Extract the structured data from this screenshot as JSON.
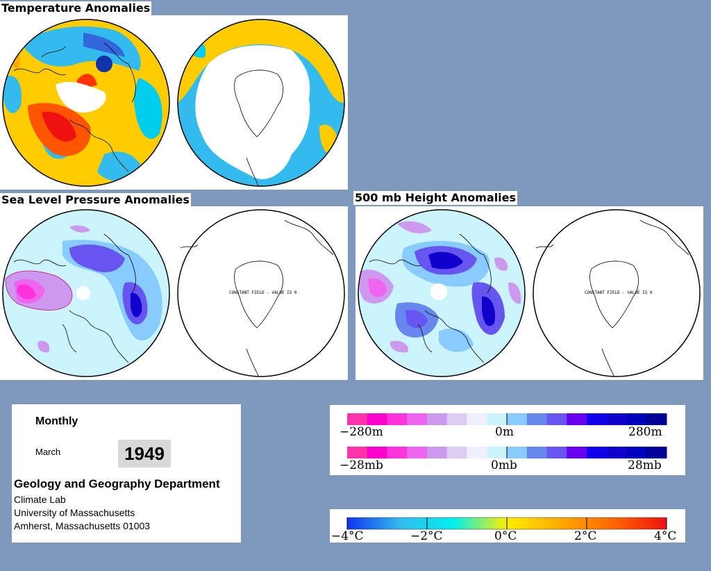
{
  "sections": {
    "temperature_title": "Temperature Anomalies",
    "slp_title": "Sea Level Pressure Anomalies",
    "height_title": "500 mb Height Anomalies"
  },
  "map_notes": {
    "constant_field_slp": "CONSTANT FIELD - VALUE IS 0",
    "constant_field_height": "CONSTANT FIELD - VALUE IS 0"
  },
  "info": {
    "period": "Monthly",
    "month": "March",
    "year": "1949",
    "department": "Geology and Geography Department",
    "line1": "Climate Lab",
    "line2": "University of Massachusetts",
    "line3": "Amherst, Massachusetts 01003"
  },
  "legends": {
    "height": {
      "labels": {
        "left": "−280m",
        "mid": "0m",
        "right": "280m"
      },
      "colors": [
        "#ff33aa",
        "#ff00cc",
        "#ff33dd",
        "#ee66ee",
        "#cc99ee",
        "#ddccf4",
        "#eef0ff",
        "#ccf4ff",
        "#88ccff",
        "#6688ee",
        "#6655ee",
        "#6600ee",
        "#1100ee",
        "#1100cc",
        "#0000bb",
        "#000099"
      ]
    },
    "pressure": {
      "labels": {
        "left": "−28mb",
        "mid": "0mb",
        "right": "28mb"
      },
      "colors": [
        "#ff33aa",
        "#ff00cc",
        "#ff33dd",
        "#ee66ee",
        "#cc99ee",
        "#ddccf4",
        "#eef0ff",
        "#ccf4ff",
        "#88ccff",
        "#6688ee",
        "#6655ee",
        "#6600ee",
        "#1100ee",
        "#1100cc",
        "#0000bb",
        "#000099"
      ]
    },
    "temperature": {
      "labels": [
        "−4°C",
        "−2°C",
        "0°C",
        "2°C",
        "4°C"
      ],
      "stops": [
        "#1133ee",
        "#33bbee",
        "#00eeee",
        "#ffee00",
        "#ffaa00",
        "#ff6600",
        "#ee1111"
      ]
    }
  }
}
